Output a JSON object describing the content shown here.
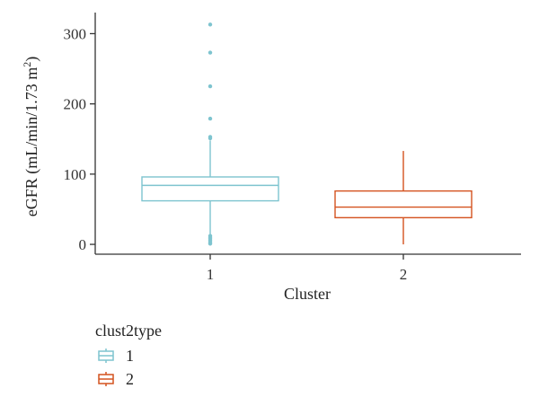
{
  "chart_data": {
    "type": "box",
    "xlabel": "Cluster",
    "ylabel": "eGFR (mL/min/1.73 m",
    "ylabel_sup": "2",
    "ylabel_close": ")",
    "ylim": [
      -14,
      330
    ],
    "yticks": [
      0,
      100,
      200,
      300
    ],
    "categories": [
      "1",
      "2"
    ],
    "series": [
      {
        "category": "1",
        "color": "#7ec4cf",
        "q1": 62,
        "median": 84,
        "q3": 96,
        "whisker_low": 12,
        "whisker_high": 148,
        "outliers": [
          313,
          273,
          225,
          179,
          153,
          151,
          12,
          10,
          8,
          6,
          4,
          2,
          1
        ]
      },
      {
        "category": "2",
        "color": "#d4521f",
        "q1": 38,
        "median": 53,
        "q3": 76,
        "whisker_low": 0,
        "whisker_high": 133,
        "outliers": []
      }
    ],
    "legend": {
      "title": "clust2type",
      "position": "bottom-left",
      "entries": [
        "1",
        "2"
      ]
    },
    "grid": false
  }
}
